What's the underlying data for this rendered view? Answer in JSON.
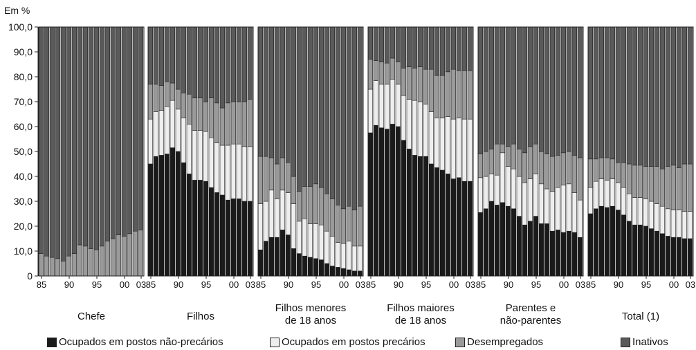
{
  "chart_data": {
    "type": "bar",
    "stacked": true,
    "ylabel": "Em %",
    "ylim": [
      0,
      100
    ],
    "yticks": [
      "0",
      "10,0",
      "20,0",
      "30,0",
      "40,0",
      "50,0",
      "60,0",
      "70,0",
      "80,0",
      "90,0",
      "100,0"
    ],
    "years": [
      1985,
      1986,
      1987,
      1988,
      1989,
      1990,
      1991,
      1992,
      1993,
      1994,
      1995,
      1996,
      1997,
      1998,
      1999,
      2000,
      2001,
      2002,
      2003
    ],
    "xtick_labels": [
      {
        "label": "85",
        "index": 0
      },
      {
        "label": "90",
        "index": 5
      },
      {
        "label": "95",
        "index": 10
      },
      {
        "label": "00",
        "index": 15
      },
      {
        "label": "03",
        "index": 18
      }
    ],
    "legend": [
      {
        "label": "Ocupados em postos não-precários",
        "color": "#1a1a1a"
      },
      {
        "label": "Ocupados em postos precários",
        "color": "#eeeeee"
      },
      {
        "label": "Desempregados",
        "color": "#9a9a9a"
      },
      {
        "label": "Inativos",
        "color": "#5a5a5a"
      }
    ],
    "groups": [
      {
        "label_lines": [
          "Chefe"
        ],
        "series": {
          "nao_precarios": [
            0,
            0,
            0,
            0,
            0,
            0,
            0,
            0,
            0,
            0,
            0,
            0,
            0,
            0,
            0,
            0,
            0,
            0,
            0
          ],
          "precarios": [
            0,
            0,
            0,
            0,
            0,
            0,
            0,
            0,
            0,
            0,
            0,
            0,
            0,
            0,
            0,
            0,
            0,
            0,
            0
          ],
          "desempregados": [
            9,
            8,
            7.5,
            7,
            6,
            8,
            9,
            12.5,
            12,
            11,
            10.5,
            12,
            14,
            15,
            16.5,
            16,
            17,
            18,
            18.5
          ],
          "inativos": [
            91,
            92,
            92.5,
            93,
            94,
            92,
            91,
            87.5,
            88,
            89,
            89.5,
            88,
            86,
            85,
            83.5,
            84,
            83,
            82,
            81.5
          ]
        }
      },
      {
        "label_lines": [
          "Filhos"
        ],
        "series": {
          "nao_precarios": [
            45,
            48,
            48.5,
            49,
            51.5,
            50,
            45.5,
            41,
            38.5,
            38.5,
            38,
            35.5,
            33.5,
            32.5,
            30.5,
            31,
            31,
            30,
            30
          ],
          "precarios": [
            18,
            18,
            18,
            19,
            19,
            17,
            18,
            20,
            20,
            20,
            20,
            20,
            20,
            20,
            22,
            22,
            22,
            22,
            22
          ],
          "desempregados": [
            14,
            11,
            10,
            10,
            7,
            8,
            10,
            12,
            13,
            13,
            12,
            16,
            16,
            15,
            17,
            17,
            17,
            18,
            19
          ],
          "inativos": [
            23,
            23,
            23.5,
            22,
            22.5,
            25,
            26.5,
            27,
            28.5,
            28.5,
            30,
            28.5,
            30.5,
            32.5,
            30.5,
            30,
            30,
            30,
            29
          ]
        }
      },
      {
        "label_lines": [
          "Filhos menores",
          "de 18 anos"
        ],
        "series": {
          "nao_precarios": [
            10.5,
            14,
            15.5,
            15.5,
            18.5,
            16.5,
            11,
            9,
            8,
            7.5,
            7,
            6.5,
            5,
            4,
            3.5,
            3,
            2.5,
            2,
            2
          ],
          "precarios": [
            18.5,
            16,
            19,
            15.5,
            16,
            17,
            18,
            13,
            15,
            13.5,
            14,
            14,
            13,
            12,
            10,
            10,
            11.5,
            10,
            10
          ],
          "desempregados": [
            19,
            18,
            13,
            14,
            13,
            12,
            11,
            12,
            13,
            15,
            16,
            15,
            15,
            15,
            15,
            14,
            14,
            14.5,
            16
          ],
          "inativos": [
            52,
            52,
            52.5,
            55,
            52.5,
            54.5,
            60,
            66,
            64,
            64,
            63,
            64.5,
            67,
            69,
            71.5,
            73,
            72,
            73.5,
            72
          ]
        }
      },
      {
        "label_lines": [
          "Filhos maiores",
          "de 18 anos"
        ],
        "series": {
          "nao_precarios": [
            57.5,
            60.5,
            59.5,
            59,
            61,
            60,
            54.5,
            51,
            48.5,
            48,
            48,
            45,
            43.5,
            42.5,
            41,
            39,
            39.5,
            38,
            38
          ],
          "precarios": [
            17.5,
            18,
            17.5,
            18,
            18,
            17,
            18,
            20,
            22,
            22,
            21,
            21,
            20,
            21,
            23,
            24,
            24,
            25,
            25
          ],
          "desempregados": [
            12,
            8,
            9,
            8.5,
            8.5,
            9,
            11,
            13,
            13,
            14,
            14,
            17,
            17,
            17,
            18,
            20,
            19,
            19.5,
            19.5
          ],
          "inativos": [
            13,
            13.5,
            14,
            14.5,
            12.5,
            14,
            16.5,
            16,
            16.5,
            16,
            17,
            17,
            19.5,
            19.5,
            18,
            17,
            17.5,
            17.5,
            17.5
          ]
        }
      },
      {
        "label_lines": [
          "Parentes e",
          "não-parentes"
        ],
        "series": {
          "nao_precarios": [
            25.5,
            27,
            30,
            28.5,
            29.5,
            28,
            27,
            24,
            20.5,
            22,
            24,
            21,
            21,
            18,
            18.5,
            17.5,
            18,
            17.5,
            15.5
          ],
          "precarios": [
            14,
            13,
            11,
            12,
            20,
            16,
            16,
            16,
            17,
            17,
            17,
            16,
            14,
            16,
            17,
            19,
            19,
            16,
            15
          ],
          "desempregados": [
            9.5,
            10,
            10,
            12.5,
            3.5,
            8,
            10,
            11,
            12,
            13,
            12,
            13,
            14,
            14,
            13,
            13,
            13,
            15,
            17
          ],
          "inativos": [
            51,
            50,
            49,
            47,
            47,
            48,
            47,
            49,
            50.5,
            48,
            47,
            50,
            51,
            52,
            51.5,
            50.5,
            50,
            51.5,
            52.5
          ]
        }
      },
      {
        "label_lines": [
          "Total (1)"
        ],
        "series": {
          "nao_precarios": [
            25,
            27,
            28,
            27.5,
            28,
            26.5,
            24.5,
            22,
            20.5,
            20.5,
            20,
            19,
            18,
            17,
            16,
            15.5,
            15.5,
            15,
            15
          ],
          "precarios": [
            10.5,
            11,
            11,
            11,
            11,
            11,
            11,
            11,
            11,
            11,
            11,
            11,
            11,
            11,
            11,
            11,
            11,
            11,
            11
          ],
          "desempregados": [
            11.5,
            9,
            8.5,
            9,
            8,
            8,
            10,
            12,
            13,
            13,
            13,
            14,
            15,
            15,
            17,
            18,
            17,
            19,
            19
          ],
          "inativos": [
            53,
            53,
            52.5,
            52.5,
            53,
            54.5,
            54.5,
            55,
            55.5,
            55.5,
            56,
            56,
            56,
            57,
            56,
            55.5,
            56.5,
            55,
            55
          ]
        }
      }
    ]
  }
}
